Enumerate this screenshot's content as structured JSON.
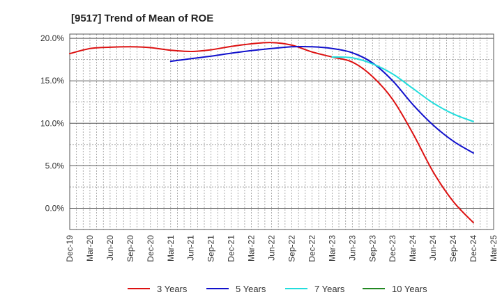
{
  "chart_data": {
    "type": "line",
    "title": "[9517]  Trend of Mean of ROE",
    "xlabel": "",
    "ylabel": "",
    "ylim": [
      -2.5,
      20.5
    ],
    "y_ticks": [
      20.0,
      15.0,
      10.0,
      5.0,
      0.0
    ],
    "y_tick_labels": [
      "20.0%",
      "15.0%",
      "10.0%",
      "5.0%",
      "0.0%"
    ],
    "x_tick_labels": [
      "Dec-19",
      "Mar-20",
      "Jun-20",
      "Sep-20",
      "Dec-20",
      "Mar-21",
      "Jun-21",
      "Sep-21",
      "Dec-21",
      "Mar-22",
      "Jun-22",
      "Sep-22",
      "Dec-22",
      "Mar-23",
      "Jun-23",
      "Sep-23",
      "Dec-23",
      "Mar-24",
      "Jun-24",
      "Sep-24",
      "Dec-24",
      "Mar-25"
    ],
    "grid": true,
    "legend_position": "bottom",
    "series": [
      {
        "name": "3 Years",
        "color": "#dd1111",
        "points": [
          [
            "Dec-19",
            18.2
          ],
          [
            "Mar-20",
            18.8
          ],
          [
            "Jun-20",
            18.95
          ],
          [
            "Sep-20",
            19.0
          ],
          [
            "Dec-20",
            18.9
          ],
          [
            "Mar-21",
            18.6
          ],
          [
            "Jun-21",
            18.45
          ],
          [
            "Sep-21",
            18.65
          ],
          [
            "Dec-21",
            19.05
          ],
          [
            "Mar-22",
            19.35
          ],
          [
            "Jun-22",
            19.5
          ],
          [
            "Sep-22",
            19.2
          ],
          [
            "Dec-22",
            18.4
          ],
          [
            "Mar-23",
            17.8
          ],
          [
            "Jun-23",
            17.2
          ],
          [
            "Sep-23",
            15.5
          ],
          [
            "Dec-23",
            12.8
          ],
          [
            "Mar-24",
            8.8
          ],
          [
            "Jun-24",
            4.3
          ],
          [
            "Sep-24",
            0.8
          ],
          [
            "Dec-24",
            -1.7
          ]
        ]
      },
      {
        "name": "5 Years",
        "color": "#1111cc",
        "points": [
          [
            "Mar-21",
            17.3
          ],
          [
            "Jun-21",
            17.6
          ],
          [
            "Sep-21",
            17.9
          ],
          [
            "Dec-21",
            18.25
          ],
          [
            "Mar-22",
            18.55
          ],
          [
            "Jun-22",
            18.8
          ],
          [
            "Sep-22",
            19.0
          ],
          [
            "Dec-22",
            19.0
          ],
          [
            "Mar-23",
            18.8
          ],
          [
            "Jun-23",
            18.3
          ],
          [
            "Sep-23",
            17.1
          ],
          [
            "Dec-23",
            15.0
          ],
          [
            "Mar-24",
            12.2
          ],
          [
            "Jun-24",
            9.8
          ],
          [
            "Sep-24",
            7.9
          ],
          [
            "Dec-24",
            6.5
          ]
        ]
      },
      {
        "name": "7 Years",
        "color": "#22dddd",
        "points": [
          [
            "Mar-23",
            17.8
          ],
          [
            "Jun-23",
            17.7
          ],
          [
            "Sep-23",
            17.0
          ],
          [
            "Dec-23",
            15.8
          ],
          [
            "Mar-24",
            14.1
          ],
          [
            "Jun-24",
            12.4
          ],
          [
            "Sep-24",
            11.1
          ],
          [
            "Dec-24",
            10.2
          ]
        ]
      },
      {
        "name": "10 Years",
        "color": "#228822",
        "points": []
      }
    ]
  }
}
